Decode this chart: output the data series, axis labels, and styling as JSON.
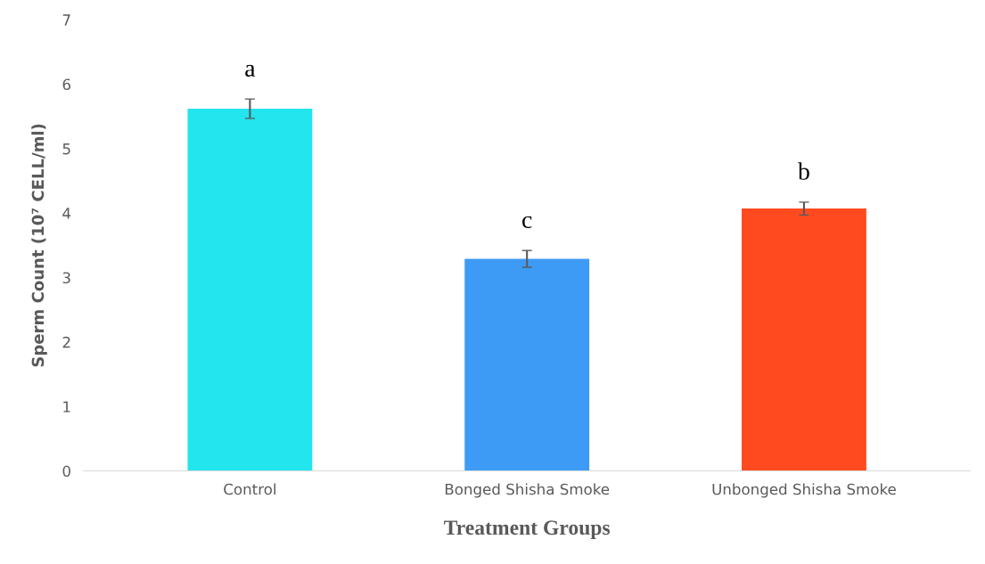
{
  "chart_data": {
    "type": "bar",
    "xlabel": "Treatment Groups",
    "ylabel": "Sperm Count (10⁷ CELL/ml)",
    "categories": [
      "Control",
      "Bonged Shisha Smoke",
      "Unbonged Shisha Smoke"
    ],
    "values": [
      5.62,
      3.29,
      4.07
    ],
    "errors": [
      0.15,
      0.13,
      0.1
    ],
    "colors": [
      "#22e5ee",
      "#3d9bf6",
      "#ff4a1f"
    ],
    "ylim": [
      0,
      7
    ],
    "yticks": [
      0,
      1,
      2,
      3,
      4,
      5,
      6,
      7
    ],
    "grid": false,
    "annotations": [
      "a",
      "c",
      "b"
    ]
  }
}
